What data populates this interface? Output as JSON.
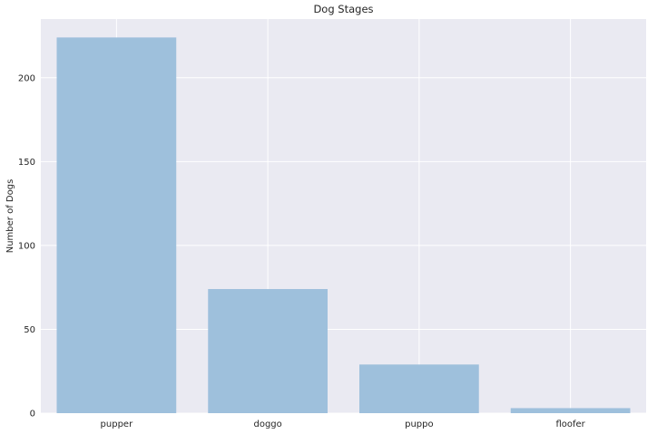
{
  "chart_data": {
    "type": "bar",
    "title": "Dog Stages",
    "xlabel": "",
    "ylabel": "Number of Dogs",
    "categories": [
      "pupper",
      "doggo",
      "puppo",
      "floofer"
    ],
    "values": [
      224,
      74,
      29,
      3
    ],
    "ylim": [
      0,
      235
    ],
    "yticks": [
      0,
      50,
      100,
      150,
      200
    ],
    "grid": true,
    "legend": "none",
    "colors": {
      "bar": "#9bbedb",
      "background": "#eaeaf2",
      "grid": "#ffffff"
    }
  }
}
